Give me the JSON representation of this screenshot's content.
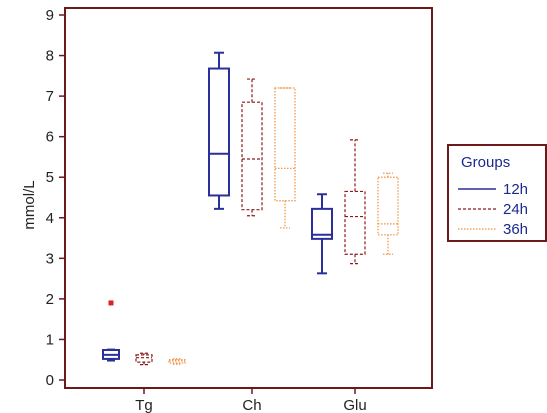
{
  "chart_data": {
    "type": "box",
    "ylabel": "mmol/L",
    "xlabel": "",
    "ylim": [
      0,
      9
    ],
    "yticks": [
      0,
      1,
      2,
      3,
      4,
      5,
      6,
      7,
      8,
      9
    ],
    "categories": [
      "Tg",
      "Ch",
      "Glu"
    ],
    "legend": {
      "title": "Groups",
      "placement": "right"
    },
    "series": [
      {
        "name": "12h",
        "color": "#2a2f9a",
        "line_style": "solid",
        "boxes": [
          {
            "category": "Tg",
            "min": 0.48,
            "q1": 0.52,
            "median": 0.62,
            "q3": 0.74,
            "max": 0.75,
            "outliers": [
              1.9
            ]
          },
          {
            "category": "Ch",
            "min": 4.22,
            "q1": 4.55,
            "median": 5.58,
            "q3": 7.68,
            "max": 8.07,
            "outliers": []
          },
          {
            "category": "Glu",
            "min": 2.63,
            "q1": 3.48,
            "median": 3.58,
            "q3": 4.22,
            "max": 4.58,
            "outliers": []
          }
        ]
      },
      {
        "name": "24h",
        "color": "#8c1a1a",
        "line_style": "dashed",
        "boxes": [
          {
            "category": "Tg",
            "min": 0.38,
            "q1": 0.44,
            "median": 0.55,
            "q3": 0.62,
            "max": 0.66,
            "outliers": []
          },
          {
            "category": "Ch",
            "min": 4.05,
            "q1": 4.2,
            "median": 5.45,
            "q3": 6.85,
            "max": 7.42,
            "outliers": []
          },
          {
            "category": "Glu",
            "min": 2.87,
            "q1": 3.1,
            "median": 4.03,
            "q3": 4.65,
            "max": 5.92,
            "outliers": []
          }
        ]
      },
      {
        "name": "36h",
        "color": "#f09040",
        "line_style": "dotted",
        "boxes": [
          {
            "category": "Tg",
            "min": 0.39,
            "q1": 0.42,
            "median": 0.47,
            "q3": 0.5,
            "max": 0.52,
            "outliers": []
          },
          {
            "category": "Ch",
            "min": 3.75,
            "q1": 4.42,
            "median": 5.22,
            "q3": 7.2,
            "max": 7.2,
            "outliers": []
          },
          {
            "category": "Glu",
            "min": 3.1,
            "q1": 3.58,
            "median": 3.85,
            "q3": 5.0,
            "max": 5.1,
            "outliers": []
          }
        ]
      }
    ],
    "grid": false
  },
  "colors": {
    "frame": "#6b1a1a",
    "outlier": "#e02020"
  }
}
